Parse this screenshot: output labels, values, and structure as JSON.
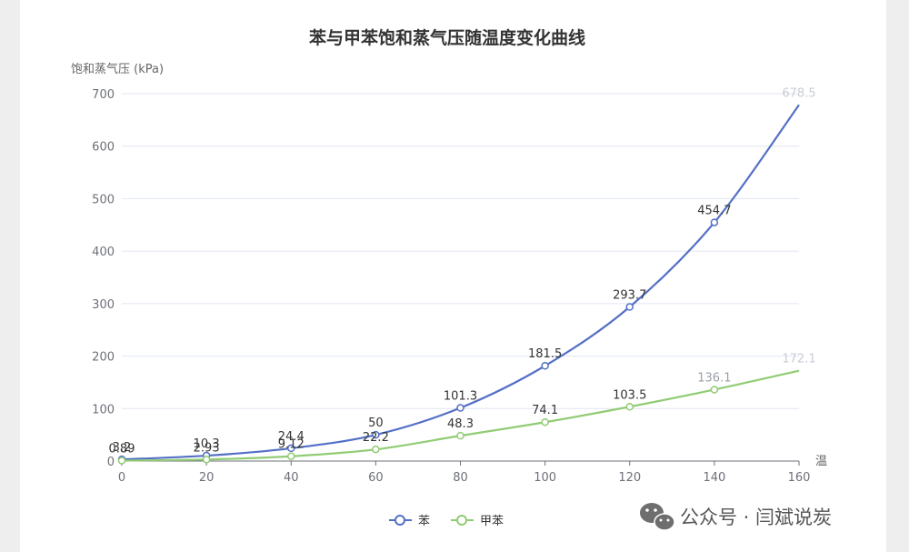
{
  "chart_data": {
    "type": "line",
    "title": "苯与甲苯饱和蒸气压随温度变化曲线",
    "xlabel": "温",
    "ylabel": "饱和蒸气压 (kPa)",
    "x": [
      0,
      20,
      40,
      60,
      80,
      100,
      120,
      140,
      160
    ],
    "x_tick_labels": [
      "0",
      "20",
      "40",
      "60",
      "80",
      "100",
      "120",
      "140",
      "160"
    ],
    "xlim": [
      0,
      160
    ],
    "ylim": [
      0,
      700
    ],
    "y_ticks": [
      0,
      100,
      200,
      300,
      400,
      500,
      600,
      700
    ],
    "y_tick_labels": [
      "0",
      "100",
      "200",
      "300",
      "400",
      "500",
      "600",
      "700"
    ],
    "grid": "horizontal",
    "legend_position": "bottom",
    "series": [
      {
        "name": "苯",
        "color": "#5470c6",
        "values": [
          3.2,
          10.3,
          24.4,
          50,
          101.3,
          181.5,
          293.7,
          454.7,
          678.5
        ],
        "labels": [
          "3.2",
          "10.3",
          "24.4",
          "50",
          "101.3",
          "181.5",
          "293.7",
          "454.7",
          "678.5"
        ]
      },
      {
        "name": "甲苯",
        "color": "#91cc75",
        "values": [
          0.89,
          2.93,
          9.12,
          22.2,
          48.3,
          74.1,
          103.5,
          136.1,
          172.1
        ],
        "labels": [
          "0.89",
          "2.93",
          "9.12",
          "22.2",
          "48.3",
          "74.1",
          "103.5",
          "136.1",
          "172.1"
        ]
      }
    ]
  },
  "watermark": {
    "text": "公众号 · 闫斌说炭",
    "icon": "wechat-icon",
    "color": "#555555"
  }
}
